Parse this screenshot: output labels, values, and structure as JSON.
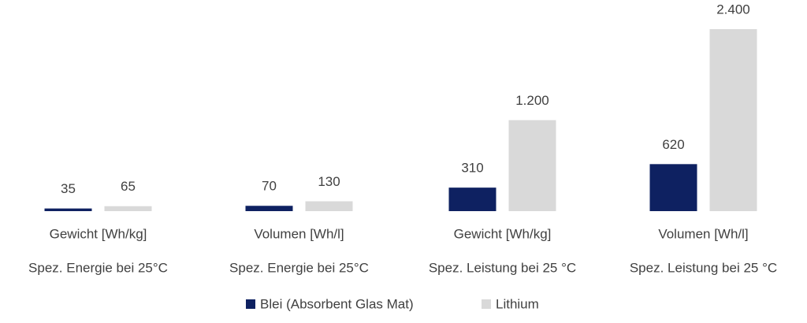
{
  "chart_data": {
    "type": "bar",
    "categories": [
      "Gewicht [Wh/kg]",
      "Volumen [Wh/l]",
      "Gewicht [Wh/kg]",
      "Volumen [Wh/l]"
    ],
    "category_groups": [
      "Spez. Energie bei 25°C",
      "Spez. Energie bei 25°C",
      "Spez. Leistung bei 25 °C",
      "Spez. Leistung bei 25 °C"
    ],
    "series": [
      {
        "name": "Blei (Absorbent Glas Mat)",
        "color": "#0e2161",
        "values": [
          35,
          70,
          310,
          620
        ]
      },
      {
        "name": "Lithium",
        "color": "#d9d9d9",
        "values": [
          65,
          130,
          1200,
          2400
        ],
        "value_labels": [
          "65",
          "130",
          "1.200",
          "2.400"
        ]
      }
    ],
    "ylim": [
      0,
      2400
    ],
    "legend": "bottom"
  }
}
